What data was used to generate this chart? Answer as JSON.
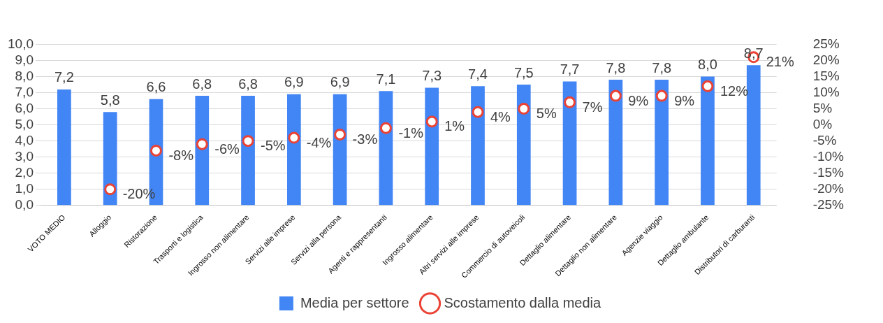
{
  "chart_data": {
    "type": "bar",
    "categories": [
      "VOTO MEDIO",
      "Alloggio",
      "Ristorazione",
      "Trasporti e logistica",
      "Ingrosso non alimentare",
      "Servizi alle imprese",
      "Servizi alla persona",
      "Agenti e rappresentanti",
      "Ingrosso alimentare",
      "Altri servizi alle imprese",
      "Commercio di autoveicoli",
      "Dettaglio alimentare",
      "Dettaglio non alimentare",
      "Agenzie viaggio",
      "Dettaglio ambulante",
      "Distributori di carburanti"
    ],
    "series": [
      {
        "name": "Media per settore",
        "color": "#4285f4",
        "values": [
          7.2,
          5.8,
          6.6,
          6.8,
          6.8,
          6.9,
          6.9,
          7.1,
          7.3,
          7.4,
          7.5,
          7.7,
          7.8,
          7.8,
          8.0,
          8.7
        ],
        "value_labels": [
          "7,2",
          "5,8",
          "6,6",
          "6,8",
          "6,8",
          "6,9",
          "6,9",
          "7,1",
          "7,3",
          "7,4",
          "7,5",
          "7,7",
          "7,8",
          "7,8",
          "8,0",
          "8,7"
        ]
      },
      {
        "name": "Scostamento dalla media",
        "type": "scatter",
        "axis": "y2",
        "marker": "circle",
        "color": "#ea4335",
        "values": [
          null,
          -20,
          -8,
          -6,
          -5,
          -4,
          -3,
          -1,
          1,
          4,
          5,
          7,
          9,
          9,
          12,
          21
        ],
        "value_labels": [
          null,
          "-20%",
          "-8%",
          "-6%",
          "-5%",
          "-4%",
          "-3%",
          "-1%",
          "1%",
          "4%",
          "5%",
          "7%",
          "9%",
          "9%",
          "12%",
          "21%"
        ]
      }
    ],
    "ylim": [
      0,
      10
    ],
    "yticks": [
      {
        "value": 0,
        "label": "0,0"
      },
      {
        "value": 1,
        "label": "1,0"
      },
      {
        "value": 2,
        "label": "2,0"
      },
      {
        "value": 3,
        "label": "3,0"
      },
      {
        "value": 4,
        "label": "4,0"
      },
      {
        "value": 5,
        "label": "5,0"
      },
      {
        "value": 6,
        "label": "6,0"
      },
      {
        "value": 7,
        "label": "7,0"
      },
      {
        "value": 8,
        "label": "8,0"
      },
      {
        "value": 9,
        "label": "9,0"
      },
      {
        "value": 10,
        "label": "10,0"
      }
    ],
    "y2lim": [
      -25,
      25
    ],
    "y2ticks": [
      {
        "value": -25,
        "label": "-25%"
      },
      {
        "value": -20,
        "label": "-20%"
      },
      {
        "value": -15,
        "label": "-15%"
      },
      {
        "value": -10,
        "label": "-10%"
      },
      {
        "value": -5,
        "label": "-5%"
      },
      {
        "value": 0,
        "label": "0%"
      },
      {
        "value": 5,
        "label": "5%"
      },
      {
        "value": 10,
        "label": "10%"
      },
      {
        "value": 15,
        "label": "15%"
      },
      {
        "value": 20,
        "label": "20%"
      },
      {
        "value": 25,
        "label": "25%"
      }
    ],
    "grid": "y",
    "legend": "bottom"
  }
}
